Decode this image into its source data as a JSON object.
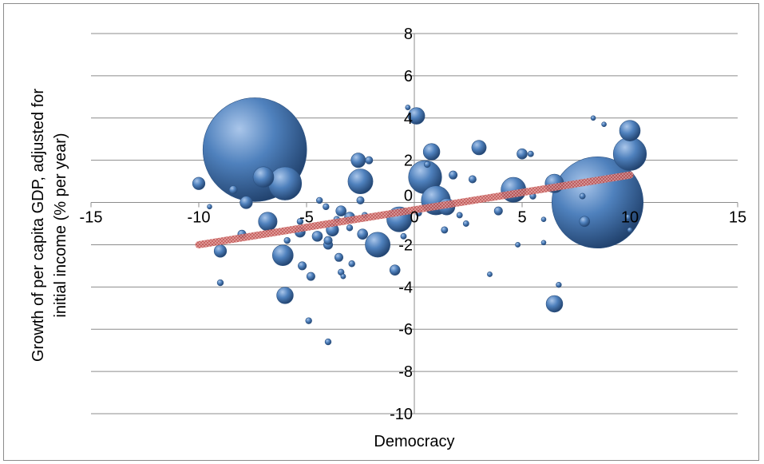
{
  "chart_data": {
    "type": "scatter",
    "subtype": "bubble",
    "title": "",
    "xlabel": "Democracy",
    "ylabel_lines": [
      "Growth of per capita GDP, adjusted for",
      "initial income (% per year)"
    ],
    "xlim": [
      -15,
      15
    ],
    "ylim": [
      -10,
      8
    ],
    "x_ticks": [
      -15,
      -10,
      -5,
      0,
      5,
      10,
      15
    ],
    "y_ticks": [
      -10,
      -8,
      -6,
      -4,
      -2,
      0,
      2,
      4,
      6,
      8
    ],
    "x_tick_labels": [
      "-15",
      "-10",
      "-5",
      "0",
      "5",
      "10",
      "15"
    ],
    "y_tick_labels": [
      "-10",
      "-8",
      "-6",
      "-4",
      "-2",
      "0",
      "2",
      "4",
      "6",
      "8"
    ],
    "grid": "horizontal",
    "legend": "none",
    "colors": {
      "bubble": "#4f81bd",
      "trendline": "#c0504d",
      "grid": "#8c8c8c"
    },
    "series": [
      {
        "points": [
          {
            "x": -7.4,
            "y": 2.5,
            "size": 25
          },
          {
            "x": 8.5,
            "y": 0.0,
            "size": 22
          },
          {
            "x": -6.0,
            "y": 0.9,
            "size": 8
          },
          {
            "x": 10.0,
            "y": 2.3,
            "size": 8
          },
          {
            "x": 10.0,
            "y": 3.4,
            "size": 5
          },
          {
            "x": -7.0,
            "y": 1.2,
            "size": 5
          },
          {
            "x": 0.5,
            "y": 1.2,
            "size": 8
          },
          {
            "x": 1.0,
            "y": 0.1,
            "size": 7
          },
          {
            "x": 4.6,
            "y": 0.6,
            "size": 6
          },
          {
            "x": 6.5,
            "y": 0.9,
            "size": 4.5
          },
          {
            "x": -1.7,
            "y": -2.0,
            "size": 6
          },
          {
            "x": -0.7,
            "y": -0.8,
            "size": 6
          },
          {
            "x": -2.5,
            "y": 1.0,
            "size": 6
          },
          {
            "x": -6.8,
            "y": -0.9,
            "size": 4.5
          },
          {
            "x": -6.1,
            "y": -2.5,
            "size": 5
          },
          {
            "x": -6.0,
            "y": -4.4,
            "size": 4
          },
          {
            "x": 6.5,
            "y": -4.8,
            "size": 4
          },
          {
            "x": 0.8,
            "y": 2.4,
            "size": 4
          },
          {
            "x": 3.0,
            "y": 2.6,
            "size": 3.5
          },
          {
            "x": 0.1,
            "y": 4.1,
            "size": 4
          },
          {
            "x": -2.6,
            "y": 2.0,
            "size": 3.5
          },
          {
            "x": 1.5,
            "y": -0.2,
            "size": 4
          },
          {
            "x": 5.0,
            "y": 2.3,
            "size": 2.5
          },
          {
            "x": -7.8,
            "y": 0.0,
            "size": 3
          },
          {
            "x": -10.0,
            "y": 0.9,
            "size": 3
          },
          {
            "x": -9.0,
            "y": -2.3,
            "size": 3
          },
          {
            "x": -3.8,
            "y": -1.3,
            "size": 3
          },
          {
            "x": -3.4,
            "y": -0.4,
            "size": 2.5
          },
          {
            "x": -4.5,
            "y": -1.6,
            "size": 2.5
          },
          {
            "x": -5.3,
            "y": -1.4,
            "size": 2.5
          },
          {
            "x": -3.0,
            "y": -0.7,
            "size": 2.5
          },
          {
            "x": -2.4,
            "y": -1.5,
            "size": 2.5
          },
          {
            "x": 3.9,
            "y": -0.4,
            "size": 2
          },
          {
            "x": 7.9,
            "y": -0.9,
            "size": 2.5
          },
          {
            "x": -0.9,
            "y": -3.2,
            "size": 2.5
          },
          {
            "x": -3.5,
            "y": -2.6,
            "size": 2
          },
          {
            "x": -5.2,
            "y": -3.0,
            "size": 2
          },
          {
            "x": -4.8,
            "y": -3.5,
            "size": 2
          },
          {
            "x": -8.0,
            "y": -1.5,
            "size": 2
          },
          {
            "x": -8.4,
            "y": 0.6,
            "size": 2
          },
          {
            "x": -4.9,
            "y": -5.6,
            "size": 1.5
          },
          {
            "x": -4.0,
            "y": -6.6,
            "size": 1.5
          },
          {
            "x": -9.0,
            "y": -3.8,
            "size": 1.5
          },
          {
            "x": -3.4,
            "y": -3.3,
            "size": 1.5
          },
          {
            "x": -3.3,
            "y": -3.5,
            "size": 1.2
          },
          {
            "x": -2.9,
            "y": -2.9,
            "size": 1.5
          },
          {
            "x": -2.1,
            "y": 2.0,
            "size": 1.8
          },
          {
            "x": -2.5,
            "y": 0.1,
            "size": 1.8
          },
          {
            "x": -3.0,
            "y": -1.2,
            "size": 1.5
          },
          {
            "x": -4.0,
            "y": -2.0,
            "size": 2.2
          },
          {
            "x": -4.4,
            "y": 0.1,
            "size": 1.5
          },
          {
            "x": -4.0,
            "y": -1.8,
            "size": 2
          },
          {
            "x": 1.8,
            "y": 1.3,
            "size": 2
          },
          {
            "x": 2.7,
            "y": 1.1,
            "size": 1.8
          },
          {
            "x": 1.4,
            "y": -1.3,
            "size": 1.6
          },
          {
            "x": -0.3,
            "y": 4.5,
            "size": 1.2
          },
          {
            "x": 0.6,
            "y": 1.8,
            "size": 1.5
          },
          {
            "x": 3.5,
            "y": -3.4,
            "size": 1.2
          },
          {
            "x": 4.8,
            "y": -2.0,
            "size": 1.2
          },
          {
            "x": 2.4,
            "y": -1.0,
            "size": 1.4
          },
          {
            "x": 5.4,
            "y": 2.3,
            "size": 1.4
          },
          {
            "x": 6.0,
            "y": -1.9,
            "size": 1.1
          },
          {
            "x": 6.7,
            "y": -3.9,
            "size": 1.3
          },
          {
            "x": 8.8,
            "y": 3.7,
            "size": 1
          },
          {
            "x": 7.8,
            "y": 0.3,
            "size": 1.4
          },
          {
            "x": 6.0,
            "y": -0.8,
            "size": 1.1
          },
          {
            "x": 9.9,
            "y": -0.7,
            "size": 1.4
          },
          {
            "x": 10.0,
            "y": -1.3,
            "size": 1.2
          },
          {
            "x": 8.3,
            "y": 4.0,
            "size": 0.9
          },
          {
            "x": -9.5,
            "y": -0.2,
            "size": 0.8
          },
          {
            "x": -5.9,
            "y": -1.8,
            "size": 1.5
          },
          {
            "x": -5.3,
            "y": -0.9,
            "size": 1.5
          },
          {
            "x": -3.6,
            "y": -0.8,
            "size": 1.5
          },
          {
            "x": -4.1,
            "y": -0.2,
            "size": 1.5
          },
          {
            "x": -2.3,
            "y": -0.6,
            "size": 1.4
          },
          {
            "x": -0.5,
            "y": -1.6,
            "size": 1.4
          },
          {
            "x": 0.2,
            "y": -0.5,
            "size": 1.5
          },
          {
            "x": 2.1,
            "y": -0.6,
            "size": 1.4
          },
          {
            "x": 5.5,
            "y": 0.3,
            "size": 1.5
          }
        ]
      }
    ],
    "trendline": {
      "x": [
        -10,
        10
      ],
      "y": [
        -2.0,
        1.3
      ]
    }
  }
}
